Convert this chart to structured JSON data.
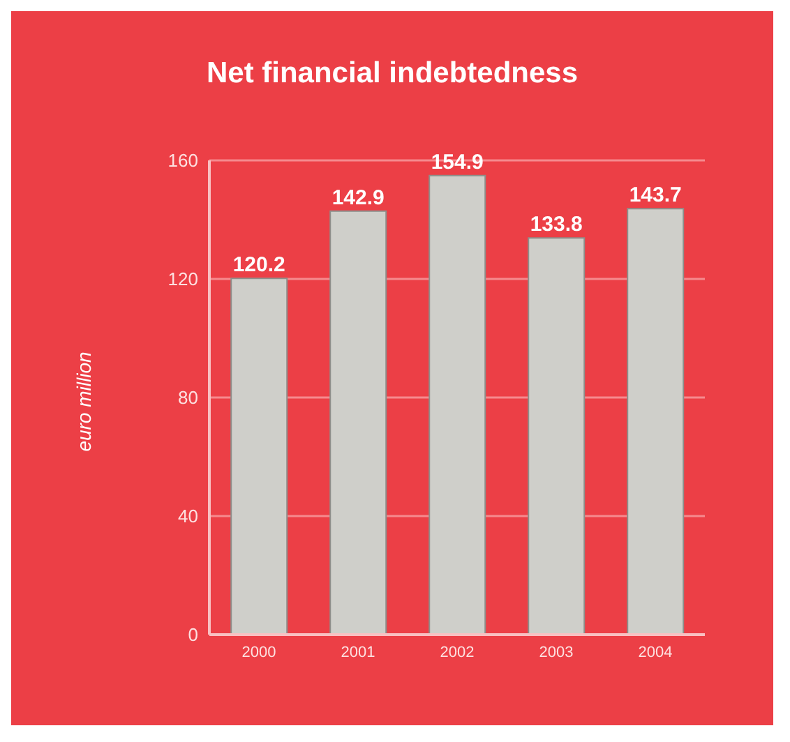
{
  "chart_data": {
    "type": "bar",
    "title": "Net financial indebtedness",
    "ylabel": "euro million",
    "categories": [
      "2000",
      "2001",
      "2002",
      "2003",
      "2004"
    ],
    "values": [
      120.2,
      142.9,
      154.9,
      133.8,
      143.7
    ],
    "color": "#cfcfca",
    "ylim": [
      0,
      160
    ],
    "yticks": [
      0,
      40,
      80,
      120,
      160
    ],
    "grid": "y",
    "data_labels": true
  }
}
